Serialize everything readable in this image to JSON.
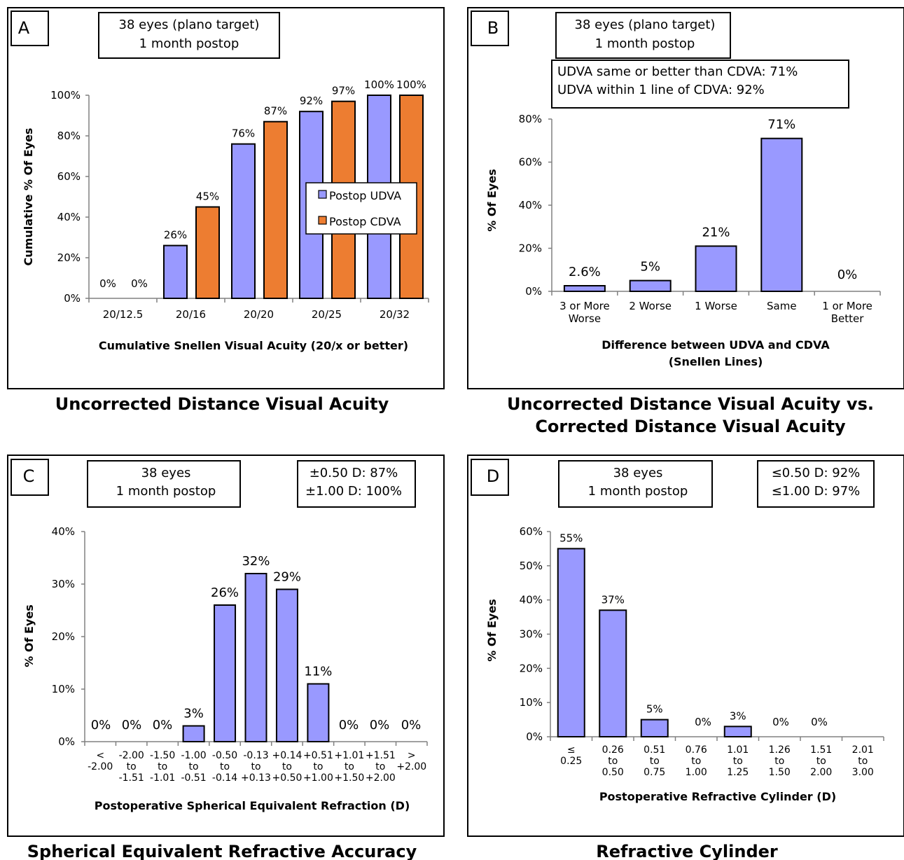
{
  "chart_data": [
    {
      "panel": "A",
      "type": "bar",
      "title": "Uncorrected Distance Visual Acuity",
      "info": [
        "38 eyes (plano target)",
        "1 month postop"
      ],
      "xlabel": "Cumulative Snellen Visual Acuity (20/x or better)",
      "ylabel": "Cumulative % Of Eyes",
      "ylim": [
        0,
        100
      ],
      "yticks": [
        "0%",
        "20%",
        "40%",
        "60%",
        "80%",
        "100%"
      ],
      "categories": [
        "20/12.5",
        "20/16",
        "20/20",
        "20/25",
        "20/32"
      ],
      "series": [
        {
          "name": "Postop UDVA",
          "color": "#9999ff",
          "values": [
            0,
            26,
            76,
            92,
            100
          ],
          "labels": [
            "0%",
            "26%",
            "76%",
            "92%",
            "100%"
          ]
        },
        {
          "name": "Postop CDVA",
          "color": "#ed7d31",
          "values": [
            0,
            45,
            87,
            97,
            100
          ],
          "labels": [
            "0%",
            "45%",
            "87%",
            "97%",
            "100%"
          ]
        }
      ],
      "legend_position": "right-middle"
    },
    {
      "panel": "B",
      "type": "bar",
      "title": "Uncorrected Distance Visual Acuity vs. Corrected Distance Visual Acuity",
      "info": [
        "38 eyes (plano target)",
        "1 month postop"
      ],
      "note": [
        "UDVA same or better than CDVA: 71%",
        "UDVA within 1 line of CDVA: 92%"
      ],
      "xlabel": [
        "Difference between  UDVA and CDVA",
        "(Snellen Lines)"
      ],
      "ylabel": "% Of Eyes",
      "ylim": [
        0,
        80
      ],
      "yticks": [
        "0%",
        "20%",
        "40%",
        "60%",
        "80%"
      ],
      "categories": [
        [
          "3 or More",
          "Worse"
        ],
        [
          "2 Worse"
        ],
        [
          "1 Worse"
        ],
        [
          "Same"
        ],
        [
          "1 or More",
          "Better"
        ]
      ],
      "series": [
        {
          "color": "#9999ff",
          "values": [
            2.6,
            5,
            21,
            71,
            0
          ],
          "labels": [
            "2.6%",
            "5%",
            "21%",
            "71%",
            "0%"
          ]
        }
      ]
    },
    {
      "panel": "C",
      "type": "bar",
      "title": "Spherical Equivalent Refractive Accuracy",
      "info": [
        "38 eyes",
        "1 month postop"
      ],
      "note": [
        "±0.50 D: 87%",
        "±1.00 D: 100%"
      ],
      "xlabel": "Postoperative Spherical Equivalent Refraction (D)",
      "ylabel": "% Of Eyes",
      "ylim": [
        0,
        40
      ],
      "yticks": [
        "0%",
        "10%",
        "20%",
        "30%",
        "40%"
      ],
      "categories": [
        [
          "<",
          "-2.00"
        ],
        [
          "-2.00",
          "to",
          "-1.51"
        ],
        [
          "-1.50",
          "to",
          "-1.01"
        ],
        [
          "-1.00",
          "to",
          "-0.51"
        ],
        [
          "-0.50",
          "to",
          "-0.14"
        ],
        [
          "-0.13",
          "to",
          "+0.13"
        ],
        [
          "+0.14",
          "to",
          "+0.50"
        ],
        [
          "+0.51",
          "to",
          "+1.00"
        ],
        [
          "+1.01",
          "to",
          "+1.50"
        ],
        [
          "+1.51",
          "to",
          "+2.00"
        ],
        [
          ">",
          "+2.00"
        ]
      ],
      "series": [
        {
          "color": "#9999ff",
          "values": [
            0,
            0,
            0,
            3,
            26,
            32,
            29,
            11,
            0,
            0,
            0
          ],
          "labels": [
            "0%",
            "0%",
            "0%",
            "3%",
            "26%",
            "32%",
            "29%",
            "11%",
            "0%",
            "0%",
            "0%"
          ]
        }
      ]
    },
    {
      "panel": "D",
      "type": "bar",
      "title": "Refractive Cylinder",
      "info": [
        "38 eyes",
        "1 month postop"
      ],
      "note": [
        "≤0.50 D: 92%",
        "≤1.00 D: 97%"
      ],
      "xlabel": "Postoperative Refractive Cylinder (D)",
      "ylabel": "% Of Eyes",
      "ylim": [
        0,
        60
      ],
      "yticks": [
        "0%",
        "10%",
        "20%",
        "30%",
        "40%",
        "50%",
        "60%"
      ],
      "categories": [
        [
          "≤",
          "0.25"
        ],
        [
          "0.26",
          "to",
          "0.50"
        ],
        [
          "0.51",
          "to",
          "0.75"
        ],
        [
          "0.76",
          "to",
          "1.00"
        ],
        [
          "1.01",
          "to",
          "1.25"
        ],
        [
          "1.26",
          "to",
          "1.50"
        ],
        [
          "1.51",
          "to",
          "2.00"
        ],
        [
          "2.01",
          "to",
          "3.00"
        ]
      ],
      "series": [
        {
          "color": "#9999ff",
          "values": [
            55,
            37,
            5,
            0,
            3,
            0,
            0,
            null
          ],
          "labels": [
            "55%",
            "37%",
            "5%",
            "0%",
            "3%",
            "0%",
            "0%",
            ""
          ]
        }
      ]
    }
  ]
}
